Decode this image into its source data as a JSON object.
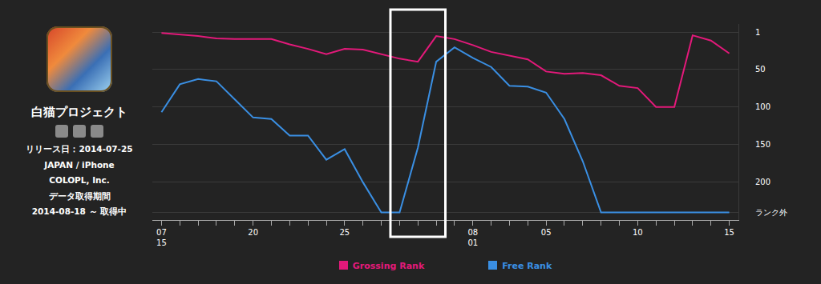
{
  "app": {
    "name": "白猫プロジェクト",
    "info": [
      "リリース日：2014-07-25",
      "JAPAN / iPhone",
      "COLOPL, Inc.",
      "データ取得期間",
      "2014-08-18 ～ 取得中"
    ]
  },
  "chart_data": {
    "type": "line",
    "categories": [
      "07\n15",
      null,
      null,
      null,
      null,
      "20",
      null,
      null,
      null,
      null,
      "25",
      null,
      null,
      null,
      null,
      null,
      null,
      "08\n01",
      null,
      null,
      null,
      "05",
      null,
      null,
      null,
      null,
      "10",
      null,
      null,
      null,
      null,
      "15"
    ],
    "series": [
      {
        "name": "Grossing Rank",
        "color": "#e3197a",
        "values": [
          2,
          4,
          6,
          9,
          10,
          10,
          10,
          17,
          23,
          30,
          23,
          24,
          30,
          36,
          40,
          6,
          10,
          18,
          27,
          32,
          37,
          53,
          56,
          55,
          58,
          72,
          75,
          100,
          100,
          5,
          12,
          29
        ]
      },
      {
        "name": "Free Rank",
        "color": "#3a8fe3",
        "values": [
          107,
          70,
          63,
          66,
          90,
          114,
          116,
          138,
          138,
          170,
          156,
          200,
          240,
          240,
          154,
          40,
          21,
          35,
          47,
          72,
          73,
          81,
          116,
          172,
          240,
          240,
          240,
          240,
          240,
          240,
          240,
          240
        ]
      }
    ],
    "ylim": [
      250,
      -10
    ],
    "yticks": [
      1,
      50,
      100,
      150,
      200,
      {
        "value": 240,
        "label": "ランク外"
      }
    ],
    "grid": true,
    "legend": "bottom"
  }
}
